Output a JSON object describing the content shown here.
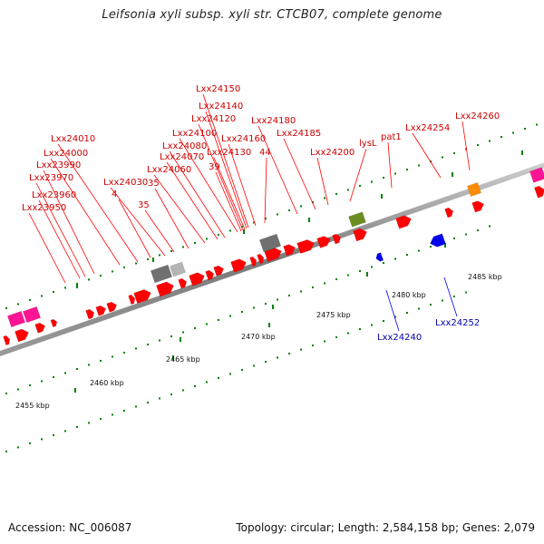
{
  "title": "Leifsonia xyli subsp. xyli str. CTCB07, complete genome",
  "footer": {
    "accession": "Accession: NC_006087",
    "summary": "Topology: circular; Length: 2,584,158 bp; Genes: 2,079"
  },
  "colors": {
    "forward_gene": "#ff0000",
    "reverse_gene": "#0000ee",
    "rna_gene": "#707070",
    "pseudo_gene": "#ff1493",
    "misc_feature": "#ff8c00",
    "special_feature": "#6b8e23",
    "label_forward": "#cc0000",
    "label_reverse": "#0000aa",
    "backbone": "#808080",
    "ticks": "#008000"
  },
  "scale_labels": [
    "2455 kbp",
    "2460 kbp",
    "2465 kbp",
    "2470 kbp",
    "2475 kbp",
    "2480 kbp",
    "2485 kbp"
  ],
  "labels_forward": [
    "Lxx23950",
    "Lxx23960",
    "Lxx23970",
    "Lxx23990",
    "Lxx24000",
    "Lxx24010",
    "4",
    "Lxx24030",
    "35",
    "35",
    "Lxx24060",
    "Lxx24070",
    "Lxx24080",
    "Lxx24100",
    "39",
    "Lxx24120",
    "Lxx24130",
    "Lxx24140",
    "Lxx24150",
    "Lxx24160",
    "44",
    "Lxx24180",
    "Lxx24185",
    "Lxx24200",
    "lysL",
    "pat1",
    "Lxx24254",
    "Lxx24260"
  ],
  "labels_reverse": [
    "Lxx24240",
    "Lxx24252"
  ]
}
